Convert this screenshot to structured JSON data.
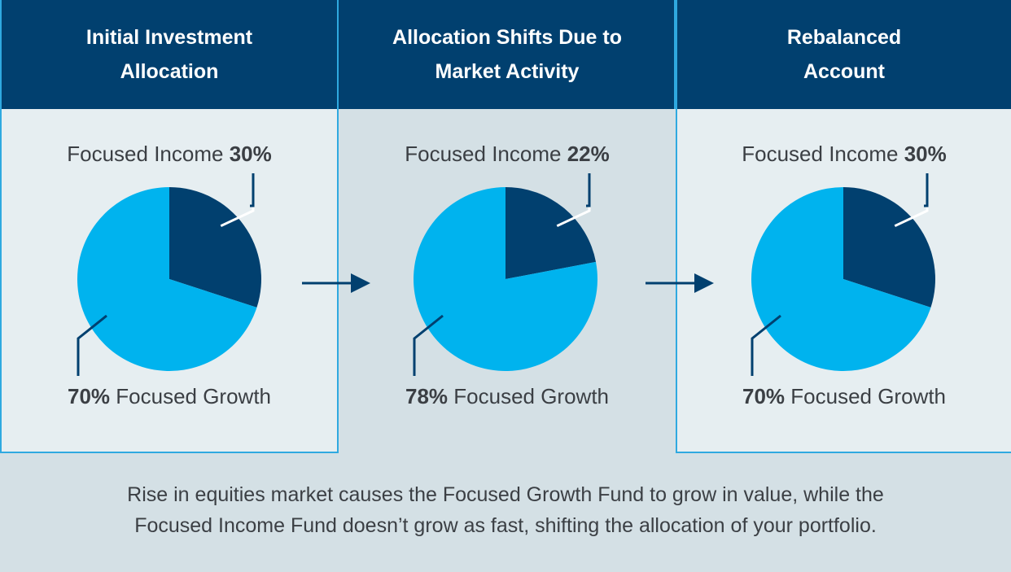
{
  "colors": {
    "header_bg": "#01406f",
    "income": "#01406f",
    "growth": "#00b3ee",
    "panel_light": "#e6eef1",
    "panel_mid": "#d4e0e5",
    "border": "#2fa9e0"
  },
  "chart_data": [
    {
      "type": "pie",
      "title": "Initial Investment\nAllocation",
      "slices": [
        {
          "name": "Focused Income",
          "value": 30
        },
        {
          "name": "Focused Growth",
          "value": 70
        }
      ]
    },
    {
      "type": "pie",
      "title": "Allocation Shifts Due to\nMarket Activity",
      "slices": [
        {
          "name": "Focused Income",
          "value": 22
        },
        {
          "name": "Focused Growth",
          "value": 78
        }
      ]
    },
    {
      "type": "pie",
      "title": "Rebalanced\nAccount",
      "slices": [
        {
          "name": "Focused Income",
          "value": 30
        },
        {
          "name": "Focused Growth",
          "value": 70
        }
      ]
    }
  ],
  "labels": {
    "income_name": "Focused Income",
    "growth_name": "Focused Growth",
    "percent_sign": "%"
  },
  "caption": {
    "line1": "Rise in equities market causes the Focused Growth Fund to grow in value, while the",
    "line2": "Focused Income Fund doesn’t grow as fast, shifting the allocation of your portfolio."
  },
  "icons": [
    "right-arrow-icon",
    "right-arrow-icon"
  ]
}
